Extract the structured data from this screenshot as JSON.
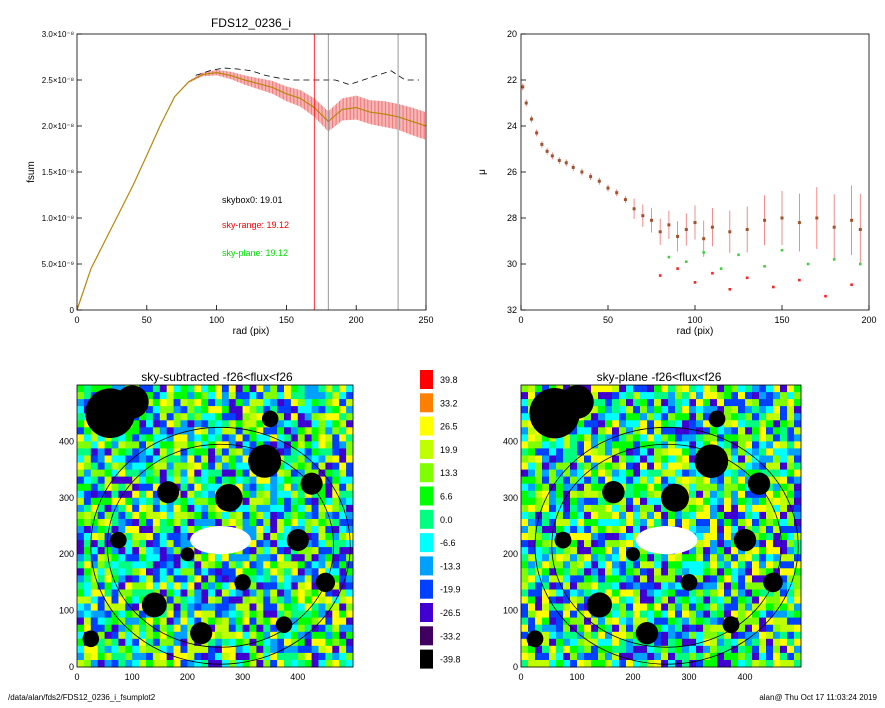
{
  "footer": {
    "path": "/data/alan/fds2/FDS12_0236_i_fsumplot2",
    "stamp": "alan@  Thu Oct 17 11:03:24 2019"
  },
  "colors": {
    "profile_main": "#b8860b",
    "profile_error": "#f07070",
    "sky_range": "#ff0000",
    "sky_plane": "#00dd00",
    "dashed": "#000000",
    "mu_points": "#a0522d"
  },
  "chart_data": [
    {
      "id": "fsum-profile",
      "type": "line",
      "title": "FDS12_0236_i",
      "xlabel": "rad (pix)",
      "ylabel": "fsum",
      "xlim": [
        0,
        250
      ],
      "ylim": [
        0,
        3e-08
      ],
      "xticks": [
        0,
        50,
        100,
        150,
        200,
        250
      ],
      "yticks": [
        {
          "v": 0,
          "label": "0"
        },
        {
          "v": 5e-09,
          "label": "5.0×10⁻⁹"
        },
        {
          "v": 1e-08,
          "label": "1.0×10⁻⁸"
        },
        {
          "v": 1.5e-08,
          "label": "1.5×10⁻⁸"
        },
        {
          "v": 2e-08,
          "label": "2.0×10⁻⁸"
        },
        {
          "v": 2.5e-08,
          "label": "2.5×10⁻⁸"
        },
        {
          "v": 3e-08,
          "label": "3.0×10⁻⁸"
        }
      ],
      "series": [
        {
          "x": [
            0,
            10,
            20,
            30,
            40,
            50,
            60,
            70,
            80,
            90,
            100,
            110,
            120,
            130,
            140,
            150,
            160,
            170,
            180,
            190,
            200,
            210,
            220,
            230,
            240,
            250
          ],
          "values": [
            0,
            4.5e-09,
            7.5e-09,
            1.05e-08,
            1.35e-08,
            1.68e-08,
            2.02e-08,
            2.32e-08,
            2.48e-08,
            2.56e-08,
            2.58e-08,
            2.55e-08,
            2.5e-08,
            2.46e-08,
            2.42e-08,
            2.35e-08,
            2.3e-08,
            2.2e-08,
            2.05e-08,
            2.18e-08,
            2.2e-08,
            2.15e-08,
            2.13e-08,
            2.1e-08,
            2.05e-08,
            2e-08
          ],
          "err": [
            0,
            0,
            0,
            0,
            0,
            0,
            0,
            0,
            1e-10,
            2e-10,
            3e-10,
            4e-10,
            5e-10,
            6e-10,
            7e-10,
            8e-10,
            9e-10,
            1e-09,
            1.1e-09,
            1.2e-09,
            1.3e-09,
            1.3e-09,
            1.4e-09,
            1.4e-09,
            1.5e-09,
            1.5e-09
          ]
        },
        {
          "x": [
            85,
            95,
            105,
            115,
            125,
            135,
            145,
            155,
            165,
            175,
            185,
            195,
            205,
            215,
            225,
            235,
            245
          ],
          "values": [
            2.55e-08,
            2.6e-08,
            2.63e-08,
            2.62e-08,
            2.6e-08,
            2.55e-08,
            2.52e-08,
            2.5e-08,
            2.5e-08,
            2.5e-08,
            2.5e-08,
            2.45e-08,
            2.5e-08,
            2.55e-08,
            2.6e-08,
            2.5e-08,
            2.5e-08
          ]
        }
      ],
      "vlines": [
        {
          "x": 170,
          "color": "#ff0000"
        },
        {
          "x": 180,
          "color": "#808080"
        },
        {
          "x": 230,
          "color": "#808080"
        }
      ],
      "annotations": [
        {
          "text": "skybox0: 19.01",
          "color": "#000000"
        },
        {
          "text": "sky-range: 19.12",
          "color": "#ff0000"
        },
        {
          "text": "sky-plane: 19.12",
          "color": "#00dd00"
        }
      ]
    },
    {
      "id": "mu-profile",
      "type": "scatter",
      "xlabel": "rad (pix)",
      "ylabel": "μ",
      "xlim": [
        0,
        200
      ],
      "ylim": [
        32,
        20
      ],
      "xticks": [
        0,
        50,
        100,
        150,
        200
      ],
      "yticks": [
        20,
        22,
        24,
        26,
        28,
        30,
        32
      ],
      "points": [
        {
          "x": 1,
          "y": 22.3
        },
        {
          "x": 3,
          "y": 23.0
        },
        {
          "x": 6,
          "y": 23.7
        },
        {
          "x": 9,
          "y": 24.3
        },
        {
          "x": 12,
          "y": 24.8
        },
        {
          "x": 15,
          "y": 25.1
        },
        {
          "x": 18,
          "y": 25.3
        },
        {
          "x": 22,
          "y": 25.5
        },
        {
          "x": 26,
          "y": 25.6
        },
        {
          "x": 30,
          "y": 25.8
        },
        {
          "x": 35,
          "y": 26.0
        },
        {
          "x": 40,
          "y": 26.2
        },
        {
          "x": 45,
          "y": 26.4
        },
        {
          "x": 50,
          "y": 26.7
        },
        {
          "x": 55,
          "y": 26.9
        },
        {
          "x": 60,
          "y": 27.2
        },
        {
          "x": 65,
          "y": 27.6
        },
        {
          "x": 70,
          "y": 27.9
        },
        {
          "x": 75,
          "y": 28.1
        },
        {
          "x": 80,
          "y": 28.6
        },
        {
          "x": 85,
          "y": 28.3
        },
        {
          "x": 90,
          "y": 28.8
        },
        {
          "x": 95,
          "y": 28.5
        },
        {
          "x": 100,
          "y": 28.2
        },
        {
          "x": 105,
          "y": 28.9
        },
        {
          "x": 110,
          "y": 28.4
        },
        {
          "x": 120,
          "y": 28.6
        },
        {
          "x": 130,
          "y": 28.5
        },
        {
          "x": 140,
          "y": 28.1
        },
        {
          "x": 150,
          "y": 28.0
        },
        {
          "x": 160,
          "y": 28.2
        },
        {
          "x": 170,
          "y": 28.0
        },
        {
          "x": 180,
          "y": 28.4
        },
        {
          "x": 190,
          "y": 28.1
        },
        {
          "x": 195,
          "y": 28.5
        }
      ],
      "points_green": [
        {
          "x": 85,
          "y": 29.7
        },
        {
          "x": 95,
          "y": 29.9
        },
        {
          "x": 105,
          "y": 29.5
        },
        {
          "x": 115,
          "y": 30.2
        },
        {
          "x": 125,
          "y": 29.6
        },
        {
          "x": 140,
          "y": 30.1
        },
        {
          "x": 150,
          "y": 29.4
        },
        {
          "x": 165,
          "y": 30.0
        },
        {
          "x": 180,
          "y": 29.8
        },
        {
          "x": 195,
          "y": 30.0
        }
      ],
      "points_red": [
        {
          "x": 80,
          "y": 30.5
        },
        {
          "x": 90,
          "y": 30.2
        },
        {
          "x": 100,
          "y": 30.8
        },
        {
          "x": 110,
          "y": 30.4
        },
        {
          "x": 120,
          "y": 31.1
        },
        {
          "x": 130,
          "y": 30.6
        },
        {
          "x": 145,
          "y": 31.0
        },
        {
          "x": 160,
          "y": 30.7
        },
        {
          "x": 175,
          "y": 31.4
        },
        {
          "x": 190,
          "y": 30.9
        }
      ]
    },
    {
      "id": "sky-subtracted-map",
      "type": "heatmap",
      "title": "sky-subtracted -f26<flux<f26",
      "xlim": [
        0,
        500
      ],
      "ylim": [
        0,
        500
      ],
      "xticks": [
        0,
        100,
        200,
        300,
        400
      ],
      "yticks": [
        0,
        100,
        200,
        300,
        400
      ]
    },
    {
      "id": "colorbar",
      "type": "table",
      "levels": [
        {
          "label": "39.8",
          "color": "#ff0000"
        },
        {
          "label": "33.2",
          "color": "#ff8000"
        },
        {
          "label": "26.5",
          "color": "#ffff00"
        },
        {
          "label": "19.9",
          "color": "#c0ff00"
        },
        {
          "label": "13.3",
          "color": "#80ff00"
        },
        {
          "label": "6.6",
          "color": "#00ff00"
        },
        {
          "label": "0.0",
          "color": "#00ff80"
        },
        {
          "label": "-6.6",
          "color": "#00ffff"
        },
        {
          "label": "-13.3",
          "color": "#00a0ff"
        },
        {
          "label": "-19.9",
          "color": "#0040ff"
        },
        {
          "label": "-26.5",
          "color": "#4000d0"
        },
        {
          "label": "-33.2",
          "color": "#400060"
        },
        {
          "label": "-39.8",
          "color": "#000000"
        }
      ]
    },
    {
      "id": "sky-plane-map",
      "type": "heatmap",
      "title": "sky-plane -f26<flux<f26",
      "xlim": [
        0,
        500
      ],
      "ylim": [
        0,
        500
      ],
      "xticks": [
        0,
        100,
        200,
        300,
        400
      ],
      "yticks": [
        0,
        100,
        200,
        300,
        400
      ]
    }
  ]
}
